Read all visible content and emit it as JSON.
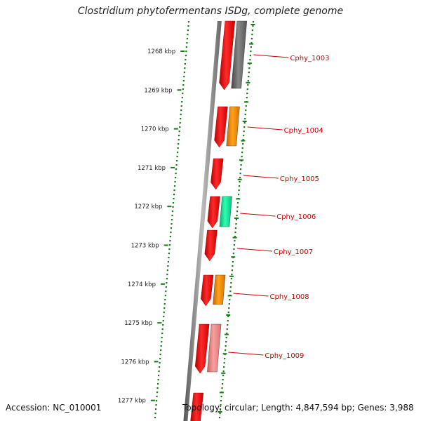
{
  "title": "Clostridium phytofermentans ISDg, complete genome",
  "accession": "Accession: NC_010001",
  "summary": "Topology: circular; Length: 4,847,594 bp; Genes: 3,988",
  "colors": {
    "forward": "#ff0000",
    "grey": "#666666",
    "orange": "#ff8c00",
    "green": "#00e68c",
    "pink": "#f08080",
    "tick": "#1a7a1a",
    "label": "#cc0000"
  },
  "ruler": [
    {
      "label": "1268 kbp"
    },
    {
      "label": "1269 kbp"
    },
    {
      "label": "1270 kbp"
    },
    {
      "label": "1271 kbp"
    },
    {
      "label": "1272 kbp"
    },
    {
      "label": "1273 kbp"
    },
    {
      "label": "1274 kbp"
    },
    {
      "label": "1275 kbp"
    },
    {
      "label": "1276 kbp"
    },
    {
      "label": "1277 kbp"
    }
  ],
  "genes": [
    {
      "name": "Cphy_1003",
      "color": "grey"
    },
    {
      "name": "Cphy_1004",
      "color": "orange"
    },
    {
      "name": "Cphy_1005",
      "color": "red"
    },
    {
      "name": "Cphy_1006",
      "color": "green"
    },
    {
      "name": "Cphy_1007",
      "color": "red"
    },
    {
      "name": "Cphy_1008",
      "color": "orange"
    },
    {
      "name": "Cphy_1009",
      "color": "pink"
    }
  ]
}
